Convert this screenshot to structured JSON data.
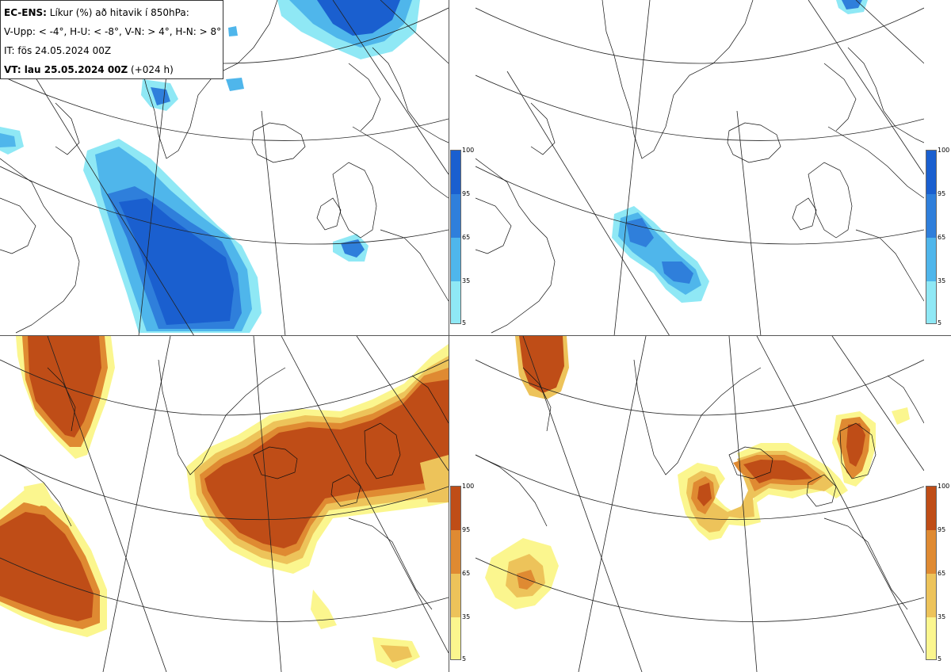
{
  "info": {
    "line1_bold": "EC-ENS:",
    "line1_rest": " Líkur (%) að hitavik í 850hPa:",
    "line2": "V-Upp: < -4°, H-U: < -8°, V-N: > 4°, H-N: > 8°",
    "line3": "IT: fös 24.05.2024 00Z",
    "line4_bold": "VT: lau 25.05.2024 00Z",
    "line4_rest": " (+024 h)"
  },
  "panels": [
    {
      "id": "V-Upp",
      "scheme": "cold"
    },
    {
      "id": "H-U",
      "scheme": "cold"
    },
    {
      "id": "V-N",
      "scheme": "warm"
    },
    {
      "id": "H-N",
      "scheme": "warm"
    }
  ],
  "colorbar": {
    "ticks": [
      "100",
      "95",
      "65",
      "35",
      "5"
    ],
    "cold_colors": [
      "#1a5fcf",
      "#2f7fdb",
      "#4fb6eb",
      "#8fe8f5"
    ],
    "warm_colors": [
      "#bf4d17",
      "#df8a32",
      "#edc35a",
      "#fbf68e"
    ]
  }
}
